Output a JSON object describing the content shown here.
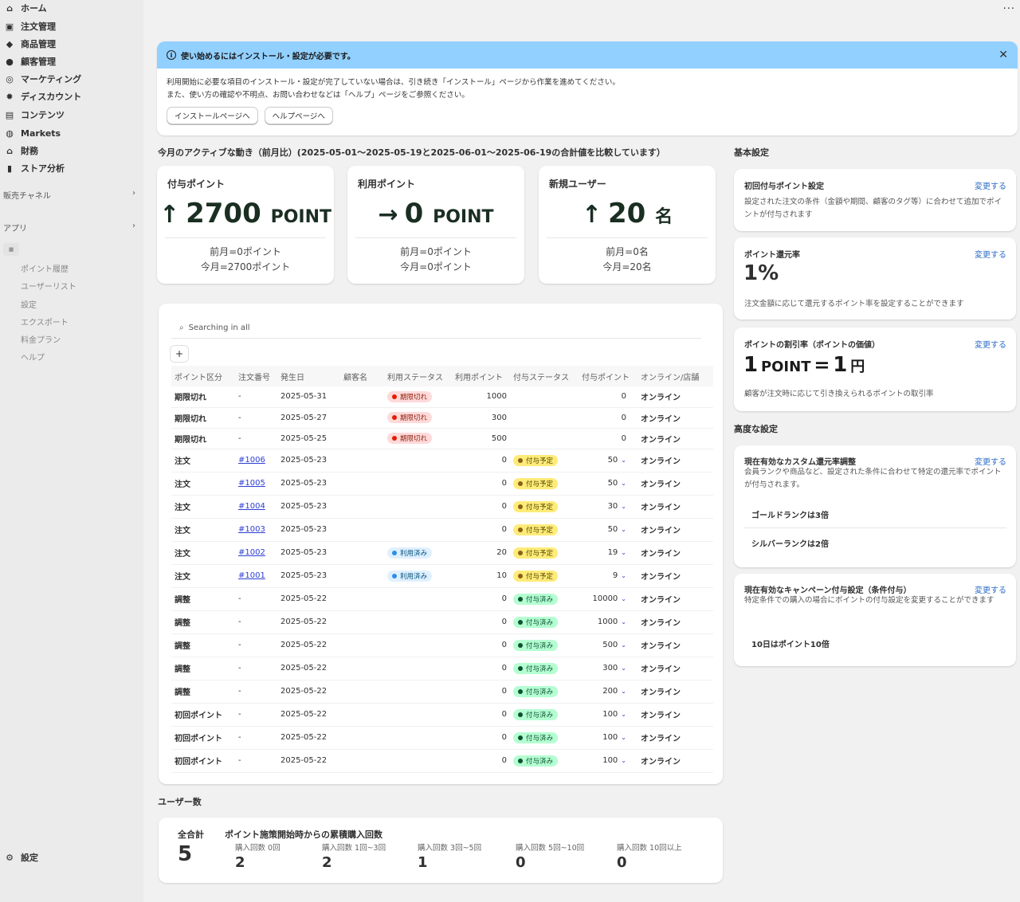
{
  "sidebar": {
    "items": [
      {
        "label": "ホーム",
        "icon": "home-icon"
      },
      {
        "label": "注文管理",
        "icon": "inbox-icon"
      },
      {
        "label": "商品管理",
        "icon": "tag-icon"
      },
      {
        "label": "顧客管理",
        "icon": "person-icon"
      },
      {
        "label": "マーケティング",
        "icon": "target-icon"
      },
      {
        "label": "ディスカウント",
        "icon": "discount-icon"
      },
      {
        "label": "コンテンツ",
        "icon": "content-icon"
      },
      {
        "label": "Markets",
        "icon": "globe-icon"
      },
      {
        "label": "財務",
        "icon": "bank-icon"
      },
      {
        "label": "ストア分析",
        "icon": "chart-icon"
      }
    ],
    "sales_channels": "販売チャネル",
    "apps": "アプリ",
    "app_subitems": [
      "ポイント履歴",
      "ユーザーリスト",
      "設定",
      "エクスポート",
      "料金プラン",
      "ヘルプ"
    ],
    "settings": "設定"
  },
  "banner": {
    "title": "使い始めるにはインストール・設定が必要です。",
    "line1": "利用開始に必要な項目のインストール・設定が完了していない場合は、引き続き「インストール」ページから作業を進めてください。",
    "line2": "また、使い方の確認や不明点、お問い合わせなどは「ヘルプ」ページをご参照ください。",
    "btn_install": "インストールページへ",
    "btn_help": "ヘルプページへ"
  },
  "activity": {
    "heading": "今月のアクティブな動き（前月比）(2025-05-01〜2025-05-19と2025-06-01〜2025-06-19の合計値を比較しています）",
    "cards": [
      {
        "title": "付与ポイント",
        "value": "2700",
        "unit": "POINT",
        "arrow": "↑",
        "prev": "前月=0ポイント",
        "curr": "今月=2700ポイント"
      },
      {
        "title": "利用ポイント",
        "value": "0",
        "unit": "POINT",
        "arrow": "→",
        "prev": "前月=0ポイント",
        "curr": "今月=0ポイント"
      },
      {
        "title": "新規ユーザー",
        "value": "20",
        "unit": "名",
        "arrow": "↑",
        "prev": "前月=0名",
        "curr": "今月=20名"
      }
    ]
  },
  "table": {
    "search_placeholder": "Searching in all",
    "columns": [
      "ポイント区分",
      "注文番号",
      "発生日",
      "顧客名",
      "利用ステータス",
      "利用ポイント",
      "付与ステータス",
      "付与ポイント",
      "オンライン/店舗"
    ],
    "rows": [
      {
        "type": "期限切れ",
        "order": "-",
        "date": "2025-05-31",
        "customer": "",
        "use_status": "期限切れ",
        "use_points": "1000",
        "grant_status": "",
        "grant_points": "0",
        "channel": "オンライン"
      },
      {
        "type": "期限切れ",
        "order": "-",
        "date": "2025-05-27",
        "customer": "",
        "use_status": "期限切れ",
        "use_points": "300",
        "grant_status": "",
        "grant_points": "0",
        "channel": "オンライン"
      },
      {
        "type": "期限切れ",
        "order": "-",
        "date": "2025-05-25",
        "customer": "",
        "use_status": "期限切れ",
        "use_points": "500",
        "grant_status": "",
        "grant_points": "0",
        "channel": "オンライン"
      },
      {
        "type": "注文",
        "order": "#1006",
        "date": "2025-05-23",
        "customer": "",
        "use_status": "",
        "use_points": "0",
        "grant_status": "付与予定",
        "grant_points": "50",
        "channel": "オンライン"
      },
      {
        "type": "注文",
        "order": "#1005",
        "date": "2025-05-23",
        "customer": "",
        "use_status": "",
        "use_points": "0",
        "grant_status": "付与予定",
        "grant_points": "50",
        "channel": "オンライン"
      },
      {
        "type": "注文",
        "order": "#1004",
        "date": "2025-05-23",
        "customer": "",
        "use_status": "",
        "use_points": "0",
        "grant_status": "付与予定",
        "grant_points": "30",
        "channel": "オンライン"
      },
      {
        "type": "注文",
        "order": "#1003",
        "date": "2025-05-23",
        "customer": "",
        "use_status": "",
        "use_points": "0",
        "grant_status": "付与予定",
        "grant_points": "50",
        "channel": "オンライン"
      },
      {
        "type": "注文",
        "order": "#1002",
        "date": "2025-05-23",
        "customer": "",
        "use_status": "利用済み",
        "use_points": "20",
        "grant_status": "付与予定",
        "grant_points": "19",
        "channel": "オンライン"
      },
      {
        "type": "注文",
        "order": "#1001",
        "date": "2025-05-23",
        "customer": "",
        "use_status": "利用済み",
        "use_points": "10",
        "grant_status": "付与予定",
        "grant_points": "9",
        "channel": "オンライン"
      },
      {
        "type": "調整",
        "order": "-",
        "date": "2025-05-22",
        "customer": "",
        "use_status": "",
        "use_points": "0",
        "grant_status": "付与済み",
        "grant_points": "10000",
        "channel": "オンライン"
      },
      {
        "type": "調整",
        "order": "-",
        "date": "2025-05-22",
        "customer": "",
        "use_status": "",
        "use_points": "0",
        "grant_status": "付与済み",
        "grant_points": "1000",
        "channel": "オンライン"
      },
      {
        "type": "調整",
        "order": "-",
        "date": "2025-05-22",
        "customer": "",
        "use_status": "",
        "use_points": "0",
        "grant_status": "付与済み",
        "grant_points": "500",
        "channel": "オンライン"
      },
      {
        "type": "調整",
        "order": "-",
        "date": "2025-05-22",
        "customer": "",
        "use_status": "",
        "use_points": "0",
        "grant_status": "付与済み",
        "grant_points": "300",
        "channel": "オンライン"
      },
      {
        "type": "調整",
        "order": "-",
        "date": "2025-05-22",
        "customer": "",
        "use_status": "",
        "use_points": "0",
        "grant_status": "付与済み",
        "grant_points": "200",
        "channel": "オンライン"
      },
      {
        "type": "初回ポイント",
        "order": "-",
        "date": "2025-05-22",
        "customer": "",
        "use_status": "",
        "use_points": "0",
        "grant_status": "付与済み",
        "grant_points": "100",
        "channel": "オンライン"
      },
      {
        "type": "初回ポイント",
        "order": "-",
        "date": "2025-05-22",
        "customer": "",
        "use_status": "",
        "use_points": "0",
        "grant_status": "付与済み",
        "grant_points": "100",
        "channel": "オンライン"
      },
      {
        "type": "初回ポイント",
        "order": "-",
        "date": "2025-05-22",
        "customer": "",
        "use_status": "",
        "use_points": "0",
        "grant_status": "付与済み",
        "grant_points": "100",
        "channel": "オンライン"
      }
    ]
  },
  "users": {
    "heading": "ユーザー数",
    "total_label": "全合計",
    "total": "5",
    "cum_title": "ポイント施策開始時からの累積購入回数",
    "buckets": [
      {
        "label": "購入回数 0回",
        "value": "2"
      },
      {
        "label": "購入回数 1回~3回",
        "value": "2"
      },
      {
        "label": "購入回数 3回~5回",
        "value": "1"
      },
      {
        "label": "購入回数 5回~10回",
        "value": "0"
      },
      {
        "label": "購入回数 10回以上",
        "value": "0"
      }
    ]
  },
  "basic": {
    "heading": "基本設定",
    "change": "変更する",
    "first_title": "初回付与ポイント設定",
    "first_desc": "設定された注文の条件（金額や期間、顧客のタグ等）に合わせて追加でポイントが付与されます",
    "rate_title": "ポイント還元率",
    "rate_value": "1%",
    "rate_desc": "注文金額に応じて還元するポイント率を設定することができます",
    "disc_title": "ポイントの割引率（ポイントの価値）",
    "disc_num1": "1",
    "disc_unit1": "POINT",
    "disc_eq": "=",
    "disc_num2": "1",
    "disc_unit2": "円",
    "disc_desc": "顧客が注文時に応じて引き換えられるポイントの取引率"
  },
  "advanced": {
    "heading": "高度な設定",
    "custom_title": "現在有効なカスタム還元率調整",
    "custom_desc": "会員ランクや商品など、設定された条件に合わせて特定の還元率でポイントが付与されます。",
    "custom_rules": [
      "ゴールドランクは3倍",
      "シルバーランクは2倍"
    ],
    "campaign_title": "現在有効なキャンペーン付与設定（条件付与）",
    "campaign_desc": "特定条件での購入の場合にポイントの付与設定を変更することができます",
    "campaign_rules": [
      "10日はポイント10倍"
    ]
  },
  "colors": {
    "banner_bg": "#91d0ff",
    "expired_bg": "#fedada",
    "expired_dot": "#e51c00",
    "used_bg": "#e0f0ff",
    "used_dot": "#2c8ee6",
    "scheduled_bg": "#ffeb78",
    "scheduled_dot": "#8a6116",
    "granted_bg": "#b4fed2",
    "granted_dot": "#0c5132",
    "link": "#2c3ed2"
  }
}
